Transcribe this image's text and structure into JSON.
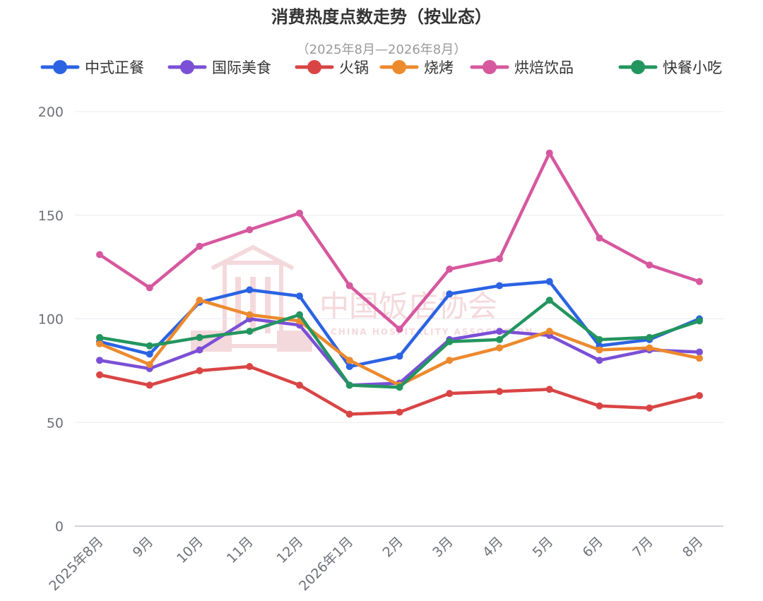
{
  "chart_data": {
    "type": "line",
    "title": "消费热度点数走势（按业态）",
    "subtitle": "（2025年8月—2026年8月）",
    "categories": [
      "2025年8月",
      "9月",
      "10月",
      "11月",
      "12月",
      "2026年1月",
      "2月",
      "3月",
      "4月",
      "5月",
      "6月",
      "7月",
      "8月"
    ],
    "y_ticks": [
      "0",
      "50",
      "100",
      "150",
      "200"
    ],
    "ylim": [
      0,
      200
    ],
    "grid": true,
    "legend_position": "top",
    "series": [
      {
        "name": "中式正餐",
        "color": "#2b63e3",
        "values": [
          89,
          83,
          108,
          114,
          111,
          77,
          82,
          112,
          116,
          118,
          87,
          90,
          100
        ]
      },
      {
        "name": "国际美食",
        "color": "#7b4fd6",
        "values": [
          80,
          76,
          85,
          100,
          97,
          68,
          69,
          90,
          94,
          92,
          80,
          85,
          84
        ]
      },
      {
        "name": "火锅",
        "color": "#d94545",
        "values": [
          73,
          68,
          75,
          77,
          68,
          54,
          55,
          64,
          65,
          66,
          58,
          57,
          63
        ]
      },
      {
        "name": "烧烤",
        "color": "#ec8a2e",
        "values": [
          88,
          78,
          109,
          102,
          99,
          80,
          68,
          80,
          86,
          94,
          85,
          86,
          81
        ]
      },
      {
        "name": "烘焙饮品",
        "color": "#d6589e",
        "values": [
          131,
          115,
          135,
          143,
          151,
          116,
          95,
          124,
          129,
          180,
          139,
          126,
          118
        ]
      },
      {
        "name": "快餐小吃",
        "color": "#23955f",
        "values": [
          91,
          87,
          91,
          94,
          102,
          68,
          67,
          89,
          90,
          109,
          90,
          91,
          99
        ]
      }
    ]
  },
  "watermark": {
    "text": "中国饭店协会",
    "sub_text": "CHINA HOSPITALITY ASSOCIATION",
    "color": "#f3d3d6"
  }
}
